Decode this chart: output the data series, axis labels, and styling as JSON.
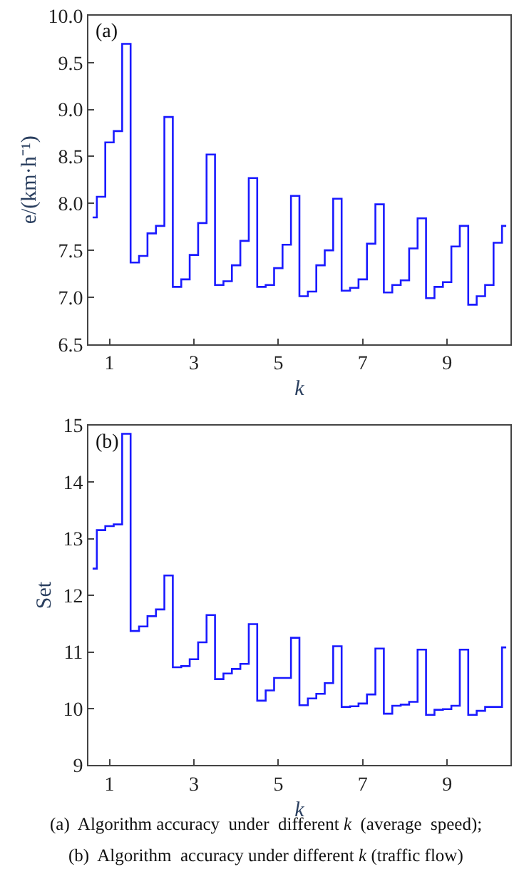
{
  "chart_data": [
    {
      "type": "step",
      "x": [
        0.6,
        0.8,
        1.0,
        1.2,
        1.4,
        1.6,
        1.8,
        2.0,
        2.2,
        2.4,
        2.6,
        2.8,
        3.0,
        3.2,
        3.4,
        3.6,
        3.8,
        4.0,
        4.2,
        4.4,
        4.6,
        4.8,
        5.0,
        5.2,
        5.4,
        5.6,
        5.8,
        6.0,
        6.2,
        6.4,
        6.6,
        6.8,
        7.0,
        7.2,
        7.4,
        7.6,
        7.8,
        8.0,
        8.2,
        8.4,
        8.6,
        8.8,
        9.0,
        9.2,
        9.4,
        9.6,
        9.8,
        10.0,
        10.2,
        10.4
      ],
      "series": [
        {
          "color": "#1a1aff",
          "values": [
            7.85,
            8.07,
            8.65,
            8.77,
            9.7,
            7.37,
            7.44,
            7.68,
            7.76,
            8.92,
            7.11,
            7.19,
            7.45,
            7.79,
            8.52,
            7.13,
            7.17,
            7.34,
            7.6,
            8.27,
            7.11,
            7.13,
            7.31,
            7.56,
            8.08,
            7.01,
            7.06,
            7.34,
            7.5,
            8.05,
            7.07,
            7.1,
            7.19,
            7.57,
            7.99,
            7.05,
            7.13,
            7.18,
            7.52,
            7.84,
            6.99,
            7.11,
            7.16,
            7.54,
            7.76,
            6.92,
            7.01,
            7.13,
            7.58,
            7.76
          ]
        }
      ],
      "xlabel": "k",
      "ylabel": "e/(km·h⁻¹)",
      "xlim": [
        0.5,
        10.5
      ],
      "xticks": [
        1,
        3,
        5,
        7,
        9
      ],
      "ylim": [
        6.5,
        10.0
      ],
      "yticks": [
        {
          "value": 6.5,
          "label": "6.5"
        },
        {
          "value": 7.0,
          "label": "7.0"
        },
        {
          "value": 7.5,
          "label": "7.5"
        },
        {
          "value": 8.0,
          "label": "8.0"
        },
        {
          "value": 8.5,
          "label": "8.5"
        },
        {
          "value": 9.0,
          "label": "9.0"
        },
        {
          "value": 9.5,
          "label": "9.5"
        },
        {
          "value": 10.0,
          "label": "10.0"
        }
      ],
      "annotations": [
        "(a)",
        "(a)  Algorithm accuracy  under  different k  (average  speed);"
      ]
    },
    {
      "type": "step",
      "x": [
        0.6,
        0.8,
        1.0,
        1.2,
        1.4,
        1.6,
        1.8,
        2.0,
        2.2,
        2.4,
        2.6,
        2.8,
        3.0,
        3.2,
        3.4,
        3.6,
        3.8,
        4.0,
        4.2,
        4.4,
        4.6,
        4.8,
        5.0,
        5.2,
        5.4,
        5.6,
        5.8,
        6.0,
        6.2,
        6.4,
        6.6,
        6.8,
        7.0,
        7.2,
        7.4,
        7.6,
        7.8,
        8.0,
        8.2,
        8.4,
        8.6,
        8.8,
        9.0,
        9.2,
        9.4,
        9.6,
        9.8,
        10.0,
        10.2,
        10.4
      ],
      "series": [
        {
          "color": "#1a1aff",
          "values": [
            12.47,
            13.15,
            13.22,
            13.25,
            14.85,
            11.37,
            11.45,
            11.63,
            11.75,
            12.35,
            10.73,
            10.75,
            10.87,
            11.17,
            11.65,
            10.52,
            10.62,
            10.7,
            10.79,
            11.49,
            10.14,
            10.32,
            10.54,
            10.54,
            11.25,
            10.06,
            10.18,
            10.26,
            10.45,
            11.1,
            10.03,
            10.04,
            10.09,
            10.25,
            11.06,
            9.91,
            10.05,
            10.07,
            10.12,
            11.04,
            9.89,
            9.98,
            9.99,
            10.05,
            11.04,
            9.89,
            9.96,
            10.03,
            10.03,
            11.08
          ]
        }
      ],
      "xlabel": "k",
      "ylabel": "Set",
      "xlim": [
        0.5,
        10.5
      ],
      "xticks": [
        1,
        3,
        5,
        7,
        9
      ],
      "ylim": [
        9,
        15
      ],
      "yticks": [
        9,
        10,
        11,
        12,
        13,
        14,
        15
      ],
      "annotations": [
        "(b)",
        "(b)  Algorithm  accuracy under different k (traffic flow)"
      ]
    }
  ]
}
